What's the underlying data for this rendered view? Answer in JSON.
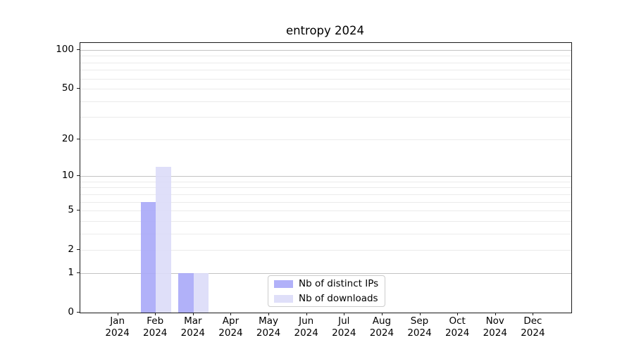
{
  "chart_data": {
    "type": "bar",
    "title": "entropy 2024",
    "categories": [
      "Jan",
      "Feb",
      "Mar",
      "Apr",
      "May",
      "Jun",
      "Jul",
      "Aug",
      "Sep",
      "Oct",
      "Nov",
      "Dec"
    ],
    "category_year": "2024",
    "series": [
      {
        "name": "Nb of distinct IPs",
        "color": "#a9a9f8",
        "values": [
          0,
          6,
          1,
          0,
          0,
          0,
          0,
          0,
          0,
          0,
          0,
          0
        ]
      },
      {
        "name": "Nb of downloads",
        "color": "#dcdcf8",
        "values": [
          0,
          12,
          1,
          0,
          0,
          0,
          0,
          0,
          0,
          0,
          0,
          0
        ]
      }
    ],
    "yscale": "log1p",
    "ylim": [
      0,
      113
    ],
    "grid": "horizontal",
    "legend_location": "lower center",
    "y_tick_labels": [
      "0",
      "1",
      "2",
      "5",
      "10",
      "20",
      "50",
      "100"
    ],
    "y_tick_values": [
      0,
      1,
      2,
      5,
      10,
      20,
      50,
      100
    ],
    "major_gridline_values": [
      1,
      10,
      100
    ],
    "minor_gridline_values": [
      2,
      3,
      4,
      5,
      6,
      7,
      8,
      9,
      20,
      30,
      40,
      50,
      60,
      70,
      80,
      90
    ],
    "colors": {
      "major_grid": "#c3c3c3",
      "minor_grid": "#ebebeb",
      "axis": "#1a1a1a",
      "background": "#ffffff"
    }
  }
}
